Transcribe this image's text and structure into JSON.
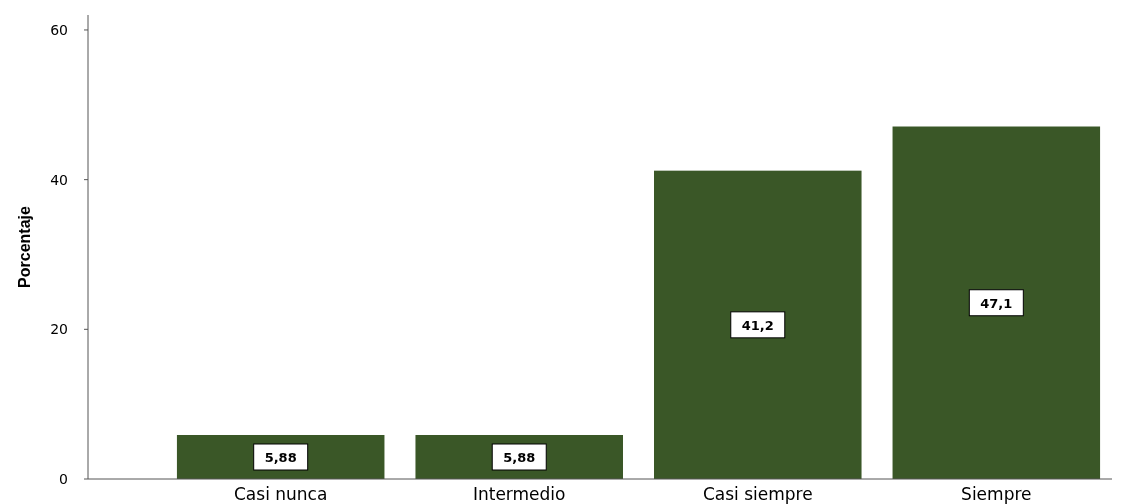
{
  "chart_data": {
    "type": "bar",
    "ylabel": "Porcentaje",
    "categories": [
      "Casi nunca",
      "Intermedio",
      "Casi siempre",
      "Siempre"
    ],
    "values": [
      5.88,
      5.88,
      41.2,
      47.1
    ],
    "color": "#3a5727",
    "ylim": [
      0,
      62
    ],
    "yticks": [
      0,
      20,
      40,
      60
    ],
    "value_labels": [
      "5,88",
      "5,88",
      "41,2",
      "47,1"
    ],
    "grid": false
  }
}
